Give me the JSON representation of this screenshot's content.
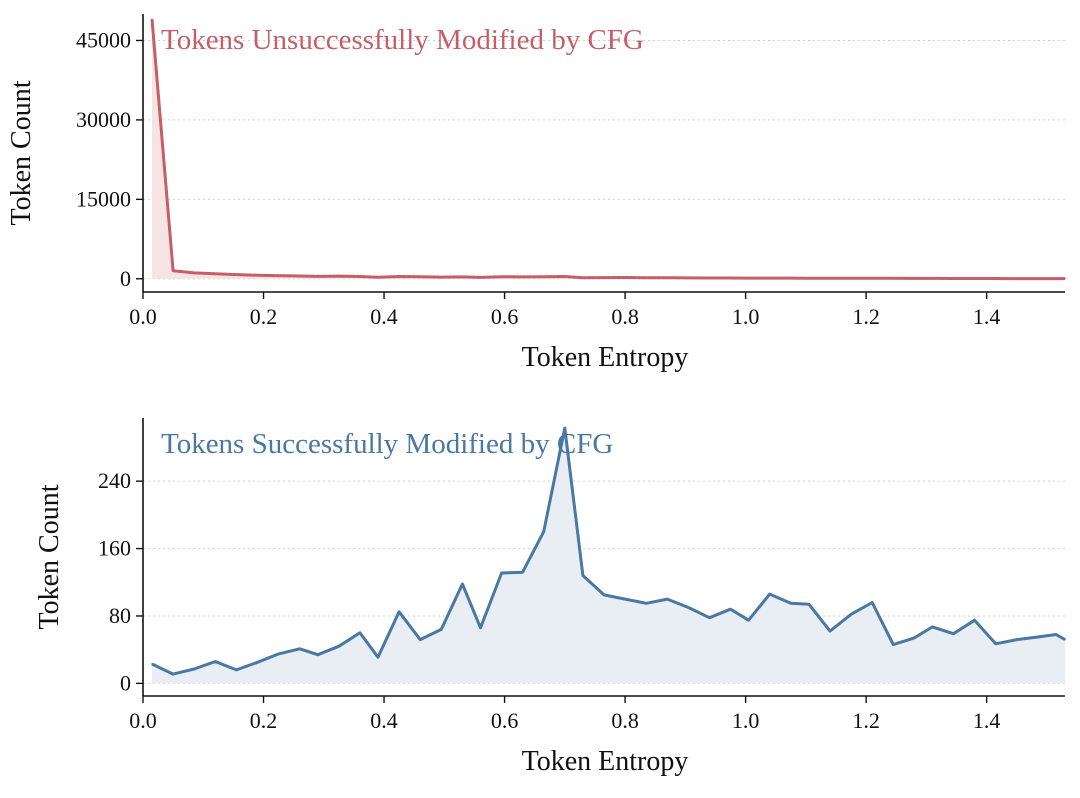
{
  "chart_data": [
    {
      "type": "area",
      "title": "Tokens Unsuccessfully Modified by CFG",
      "xlabel": "Token Entropy",
      "ylabel": "Token Count",
      "xlim": [
        0.0,
        1.53
      ],
      "ylim": [
        -2500,
        50000
      ],
      "xticks": [
        "0.0",
        "0.2",
        "0.4",
        "0.6",
        "0.8",
        "1.0",
        "1.2",
        "1.4"
      ],
      "yticks": [
        "0",
        "15000",
        "30000",
        "45000"
      ],
      "grid": "horizontal-dotted",
      "color": "#c45f68",
      "fill_color": "#f6e4e5",
      "series": [
        {
          "x": [
            0.015,
            0.02,
            0.05,
            0.085,
            0.12,
            0.15,
            0.19,
            0.22,
            0.26,
            0.29,
            0.325,
            0.36,
            0.39,
            0.425,
            0.46,
            0.495,
            0.53,
            0.56,
            0.595,
            0.63,
            0.665,
            0.7,
            0.73,
            0.765,
            0.8,
            0.835,
            0.87,
            0.905,
            0.94,
            0.97,
            1.005,
            1.04,
            1.07,
            1.105,
            1.14,
            1.17,
            1.21,
            1.24,
            1.275,
            1.31,
            1.345,
            1.38,
            1.41,
            1.445,
            1.48,
            1.515,
            1.53
          ],
          "values": [
            49000,
            42000,
            1500,
            1100,
            950,
            800,
            650,
            600,
            520,
            450,
            500,
            420,
            300,
            420,
            380,
            320,
            350,
            250,
            380,
            350,
            380,
            420,
            200,
            220,
            230,
            200,
            180,
            170,
            150,
            140,
            130,
            120,
            120,
            110,
            100,
            100,
            90,
            80,
            70,
            60,
            55,
            50,
            45,
            40,
            35,
            30,
            25
          ]
        }
      ]
    },
    {
      "type": "area",
      "title": "Tokens Successfully Modified by CFG",
      "xlabel": "Token Entropy",
      "ylabel": "Token Count",
      "xlim": [
        0.0,
        1.53
      ],
      "ylim": [
        -15,
        315
      ],
      "xticks": [
        "0.0",
        "0.2",
        "0.4",
        "0.6",
        "0.8",
        "1.0",
        "1.2",
        "1.4"
      ],
      "yticks": [
        "0",
        "80",
        "160",
        "240"
      ],
      "grid": "horizontal-dotted",
      "color": "#4a77a3",
      "fill_color": "#e8eef3",
      "series": [
        {
          "x": [
            0.015,
            0.05,
            0.085,
            0.12,
            0.155,
            0.19,
            0.225,
            0.26,
            0.29,
            0.325,
            0.36,
            0.39,
            0.425,
            0.46,
            0.495,
            0.53,
            0.56,
            0.595,
            0.63,
            0.665,
            0.7,
            0.73,
            0.765,
            0.8,
            0.835,
            0.87,
            0.905,
            0.94,
            0.975,
            1.005,
            1.04,
            1.075,
            1.105,
            1.14,
            1.175,
            1.21,
            1.245,
            1.28,
            1.31,
            1.345,
            1.38,
            1.415,
            1.45,
            1.485,
            1.515,
            1.53
          ],
          "values": [
            23,
            11,
            17,
            26,
            16,
            25,
            35,
            41,
            34,
            44,
            60,
            31,
            85,
            52,
            64,
            118,
            66,
            131,
            132,
            180,
            303,
            128,
            105,
            100,
            95,
            100,
            90,
            78,
            88,
            75,
            106,
            95,
            94,
            62,
            82,
            96,
            46,
            54,
            67,
            59,
            75,
            47,
            52,
            55,
            58,
            52
          ]
        }
      ]
    }
  ]
}
